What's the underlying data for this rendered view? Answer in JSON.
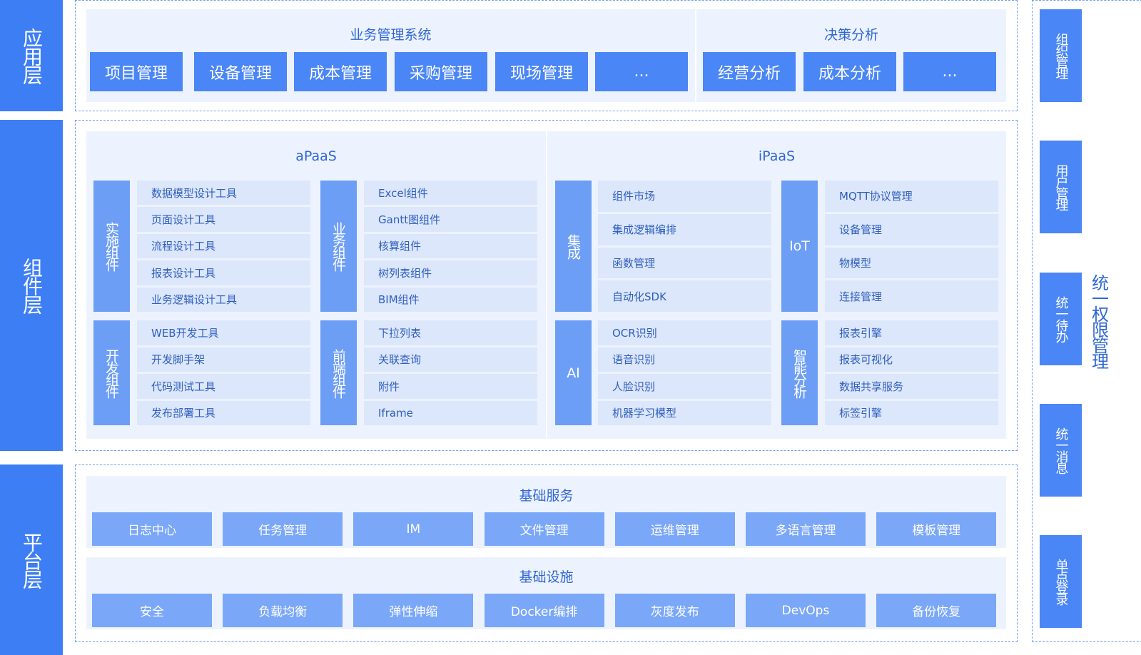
{
  "layers": [
    {
      "label": "应用层"
    },
    {
      "label": "组件层"
    },
    {
      "label": "平台层"
    }
  ],
  "application": {
    "groups": [
      {
        "title": "业务管理系统",
        "items": [
          "项目管理",
          "设备管理",
          "成本管理",
          "采购管理",
          "现场管理",
          "..."
        ]
      },
      {
        "title": "决策分析",
        "items": [
          "经营分析",
          "成本分析",
          "..."
        ]
      }
    ]
  },
  "component": {
    "groups": [
      {
        "title": "aPaaS",
        "blocks": [
          {
            "label": "实施组件",
            "items": [
              "数据模型设计工具",
              "页面设计工具",
              "流程设计工具",
              "报表设计工具",
              "业务逻辑设计工具"
            ]
          },
          {
            "label": "业务组件",
            "items": [
              "Excel组件",
              "Gantt图组件",
              "核算组件",
              "树列表组件",
              "BIM组件"
            ]
          },
          {
            "label": "开发组件",
            "items": [
              "WEB开发工具",
              "开发脚手架",
              "代码测试工具",
              "发布部署工具"
            ]
          },
          {
            "label": "前端组件",
            "items": [
              "下拉列表",
              "关联查询",
              "附件",
              "Iframe"
            ]
          }
        ]
      },
      {
        "title": "iPaaS",
        "blocks": [
          {
            "label": "集成",
            "items": [
              "组件市场",
              "集成逻辑编排",
              "函数管理",
              "自动化SDK"
            ]
          },
          {
            "label": "IoT",
            "items": [
              "MQTT协议管理",
              "设备管理",
              "物模型",
              "连接管理"
            ]
          },
          {
            "label": "AI",
            "items": [
              "OCR识别",
              "语音识别",
              "人脸识别",
              "机器学习模型"
            ]
          },
          {
            "label": "智能分析",
            "items": [
              "报表引擎",
              "报表可视化",
              "数据共享服务",
              "标签引擎"
            ]
          }
        ]
      }
    ]
  },
  "platform": {
    "groups": [
      {
        "title": "基础服务",
        "items": [
          "日志中心",
          "任务管理",
          "IM",
          "文件管理",
          "运维管理",
          "多语言管理",
          "模板管理"
        ]
      },
      {
        "title": "基础设施",
        "items": [
          "安全",
          "负载均衡",
          "弹性伸缩",
          "Docker编排",
          "灰度发布",
          "DevOps",
          "备份恢复"
        ]
      }
    ]
  },
  "side": {
    "title": "统一权限管理",
    "items": [
      "组织管理",
      "用户管理",
      "统一待办",
      "统一消息",
      "单点登录"
    ]
  }
}
